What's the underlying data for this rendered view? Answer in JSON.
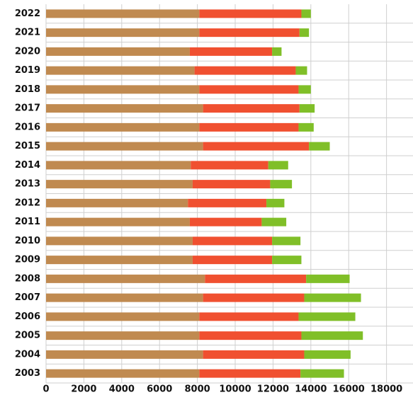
{
  "chart_data": {
    "type": "stacked_barh",
    "categories": [
      "2022",
      "2021",
      "2020",
      "2019",
      "2018",
      "2017",
      "2016",
      "2015",
      "2014",
      "2013",
      "2012",
      "2011",
      "2010",
      "2009",
      "2008",
      "2007",
      "2006",
      "2005",
      "2004",
      "2003"
    ],
    "series": [
      {
        "color": "#c08a50",
        "values": [
          8100,
          8100,
          7600,
          7850,
          8100,
          8300,
          8100,
          8300,
          7650,
          7750,
          7500,
          7600,
          7750,
          7750,
          8400,
          8300,
          8100,
          8100,
          8300,
          8100
        ]
      },
      {
        "color": "#f05030",
        "values": [
          5400,
          5300,
          4350,
          5350,
          5250,
          5100,
          5250,
          5600,
          4100,
          4100,
          4150,
          3800,
          4200,
          4200,
          5350,
          5350,
          5250,
          5400,
          5350,
          5350
        ]
      },
      {
        "color": "#80bf28",
        "values": [
          500,
          500,
          500,
          600,
          650,
          800,
          800,
          1100,
          1050,
          1150,
          950,
          1300,
          1500,
          1550,
          2300,
          3000,
          3000,
          3250,
          2450,
          2300
        ]
      }
    ],
    "xlim": [
      0,
      19400
    ],
    "xticks": [
      0,
      2000,
      4000,
      6000,
      8000,
      10000,
      12000,
      14000,
      16000,
      18000
    ],
    "grid": true
  }
}
